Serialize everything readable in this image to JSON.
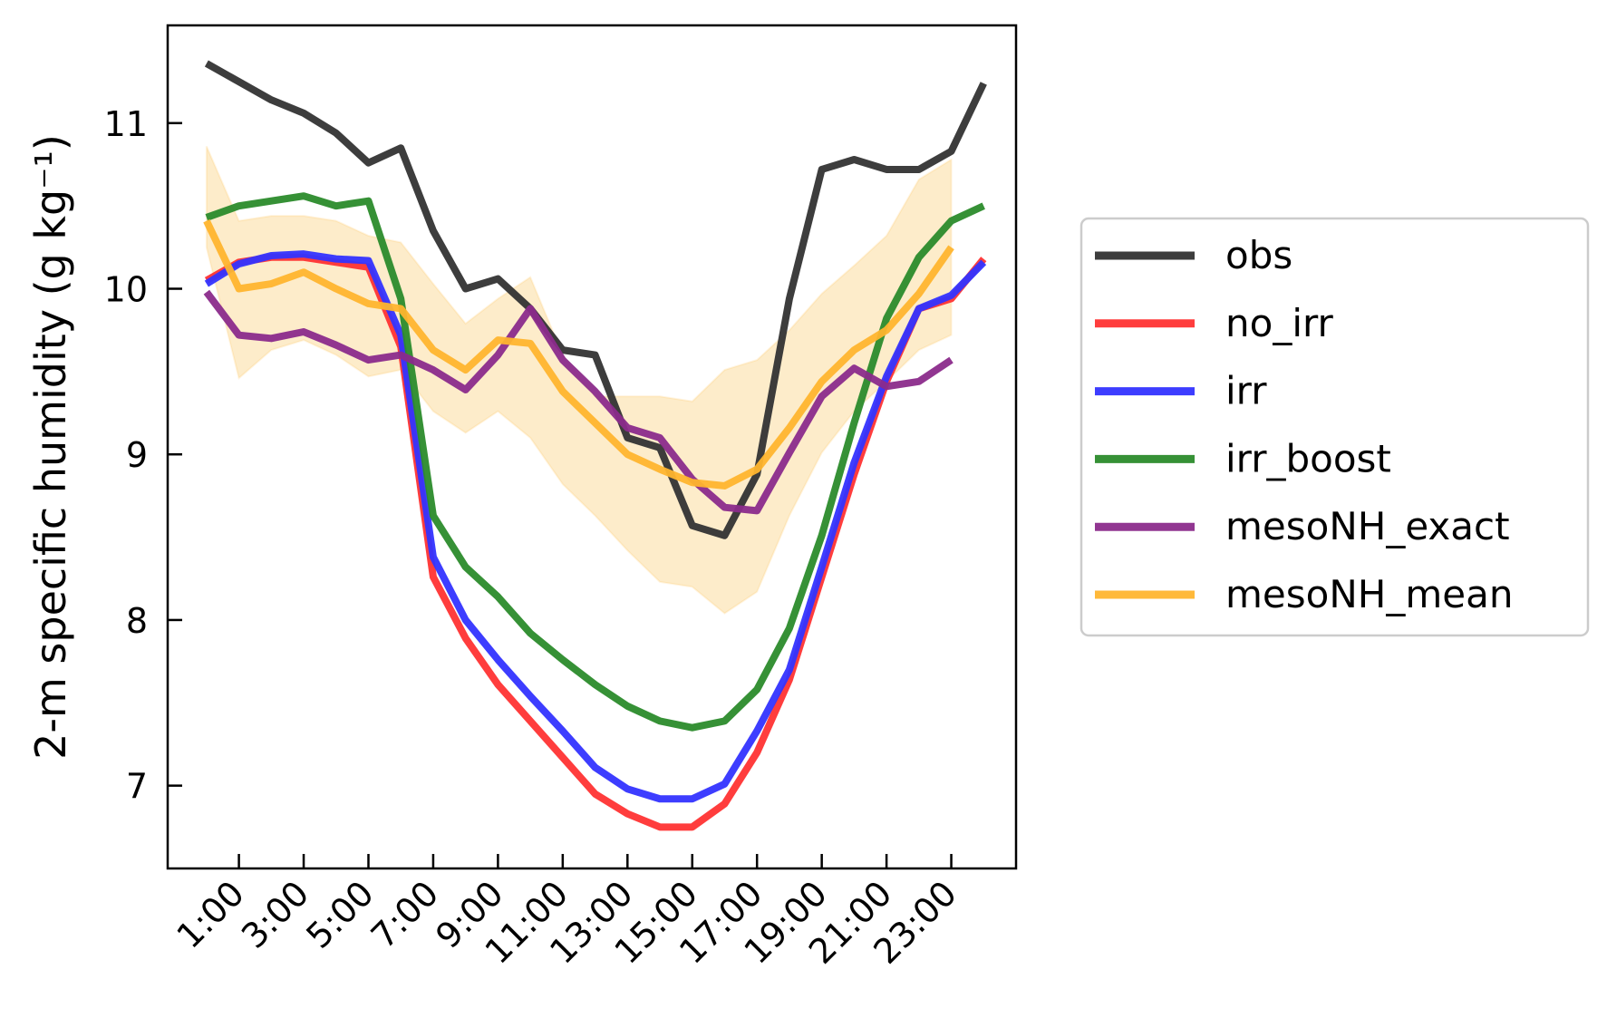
{
  "chart_data": {
    "type": "line",
    "y_label": "2-m specific humidity (g kg⁻¹)",
    "x": [
      0,
      1,
      2,
      3,
      4,
      5,
      6,
      7,
      8,
      9,
      10,
      11,
      12,
      13,
      14,
      15,
      16,
      17,
      18,
      19,
      20,
      21,
      22,
      23,
      24
    ],
    "xlim": [
      -1.2,
      25.0
    ],
    "xticks": [
      {
        "value": 1,
        "label": "1:00"
      },
      {
        "value": 3,
        "label": "3:00"
      },
      {
        "value": 5,
        "label": "5:00"
      },
      {
        "value": 7,
        "label": "7:00"
      },
      {
        "value": 9,
        "label": "9:00"
      },
      {
        "value": 11,
        "label": "11:00"
      },
      {
        "value": 13,
        "label": "13:00"
      },
      {
        "value": 15,
        "label": "15:00"
      },
      {
        "value": 17,
        "label": "17:00"
      },
      {
        "value": 19,
        "label": "19:00"
      },
      {
        "value": 21,
        "label": "21:00"
      },
      {
        "value": 23,
        "label": "23:00"
      }
    ],
    "ylim": [
      6.5,
      11.59
    ],
    "yticks": [
      7,
      8,
      9,
      10,
      11
    ],
    "legend": "outside-right",
    "series": [
      {
        "name": "obs",
        "color": "#333333",
        "values": [
          11.36,
          11.25,
          11.14,
          11.06,
          10.94,
          10.76,
          10.85,
          10.35,
          10.0,
          10.06,
          9.88,
          9.63,
          9.6,
          9.1,
          9.04,
          8.57,
          8.51,
          8.88,
          9.94,
          10.72,
          10.78,
          10.72,
          10.72,
          10.83,
          11.24
        ]
      },
      {
        "name": "no_irr",
        "color": "#ff3333",
        "values": [
          10.05,
          10.16,
          10.19,
          10.19,
          10.16,
          10.13,
          9.65,
          8.26,
          7.89,
          7.61,
          7.39,
          7.17,
          6.95,
          6.83,
          6.75,
          6.75,
          6.89,
          7.2,
          7.64,
          8.26,
          8.88,
          9.44,
          9.88,
          9.94,
          10.18
        ]
      },
      {
        "name": "irr",
        "color": "#3333ff",
        "values": [
          10.03,
          10.15,
          10.2,
          10.21,
          10.18,
          10.17,
          9.72,
          8.38,
          8.0,
          7.76,
          7.54,
          7.33,
          7.11,
          6.98,
          6.92,
          6.92,
          7.01,
          7.33,
          7.7,
          8.32,
          8.95,
          9.47,
          9.88,
          9.96,
          10.16
        ]
      },
      {
        "name": "irr_boost",
        "color": "#2b8b2b",
        "values": [
          10.43,
          10.5,
          10.53,
          10.56,
          10.5,
          10.53,
          9.94,
          8.63,
          8.32,
          8.14,
          7.92,
          7.76,
          7.61,
          7.48,
          7.39,
          7.35,
          7.39,
          7.58,
          7.95,
          8.51,
          9.19,
          9.82,
          10.19,
          10.41,
          10.5
        ]
      },
      {
        "name": "mesoNH_exact",
        "color": "#8b2b8b",
        "values": [
          9.98,
          9.72,
          9.7,
          9.74,
          9.66,
          9.57,
          9.6,
          9.51,
          9.39,
          9.6,
          9.88,
          9.57,
          9.38,
          9.16,
          9.1,
          8.85,
          8.68,
          8.66,
          9.01,
          9.35,
          9.52,
          9.41,
          9.44,
          9.57,
          null
        ]
      },
      {
        "name": "mesoNH_mean",
        "color": "#ffb52e",
        "band_color": "#fde7bd",
        "values": [
          10.41,
          10.0,
          10.03,
          10.1,
          10.0,
          9.91,
          9.88,
          9.63,
          9.51,
          9.69,
          9.67,
          9.38,
          9.19,
          9.0,
          8.91,
          8.83,
          8.81,
          8.91,
          9.16,
          9.44,
          9.63,
          9.75,
          9.97,
          10.25,
          null
        ],
        "lower": [
          10.25,
          9.46,
          9.63,
          9.69,
          9.6,
          9.47,
          9.51,
          9.26,
          9.13,
          9.26,
          9.1,
          8.82,
          8.63,
          8.42,
          8.23,
          8.2,
          8.04,
          8.17,
          8.63,
          9.01,
          9.26,
          9.44,
          9.63,
          9.72,
          null
        ],
        "upper": [
          10.86,
          10.41,
          10.44,
          10.44,
          10.41,
          10.32,
          10.28,
          10.03,
          9.79,
          9.94,
          10.07,
          9.6,
          9.35,
          9.35,
          9.35,
          9.32,
          9.51,
          9.57,
          9.75,
          9.97,
          10.14,
          10.32,
          10.66,
          10.78,
          null
        ]
      }
    ]
  }
}
